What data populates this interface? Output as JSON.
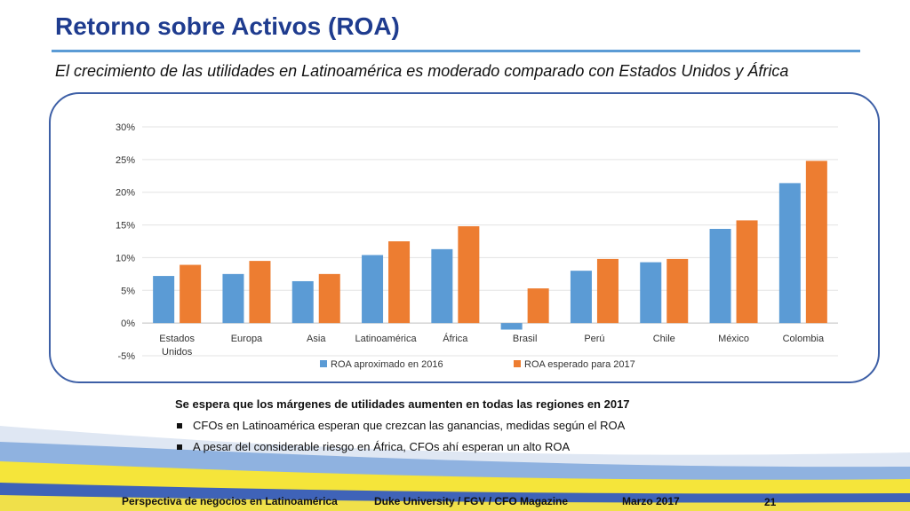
{
  "header": {
    "title": "Retorno sobre Activos (ROA)",
    "subtitle": "El crecimiento de las utilidades en Latinoamérica es moderado comparado con Estados Unidos y África"
  },
  "chart_data": {
    "type": "bar",
    "categories": [
      "Estados Unidos",
      "Europa",
      "Asia",
      "Latinoamérica",
      "África",
      "Brasil",
      "Perú",
      "Chile",
      "México",
      "Colombia"
    ],
    "series": [
      {
        "name": "ROA aproximado en 2016",
        "values": [
          7.2,
          7.5,
          6.4,
          10.4,
          11.3,
          -1.0,
          8.0,
          9.3,
          14.4,
          21.4
        ],
        "color": "#5b9bd5"
      },
      {
        "name": "ROA esperado para 2017",
        "values": [
          8.9,
          9.5,
          7.5,
          12.5,
          14.8,
          5.3,
          9.8,
          9.8,
          15.7,
          24.8
        ],
        "color": "#ed7d31"
      }
    ],
    "yticks": [
      "30%",
      "25%",
      "20%",
      "15%",
      "10%",
      "5%",
      "0%",
      "-5%"
    ],
    "ylim": [
      -5,
      30
    ],
    "grid": true,
    "legend": "bottom"
  },
  "notes": {
    "heading": "Se espera que los márgenes de utilidades aumenten en todas las regiones en 2017",
    "items": [
      "CFOs en Latinoamérica esperan que crezcan las ganancias, medidas según el ROA",
      "A pesar del considerable riesgo en África, CFOs ahí esperan un alto ROA"
    ]
  },
  "footer": {
    "left": "Perspectiva de negocios en Latinoamérica",
    "center": "Duke University / FGV / CFO Magazine",
    "date": "Marzo 2017",
    "page": "21"
  }
}
